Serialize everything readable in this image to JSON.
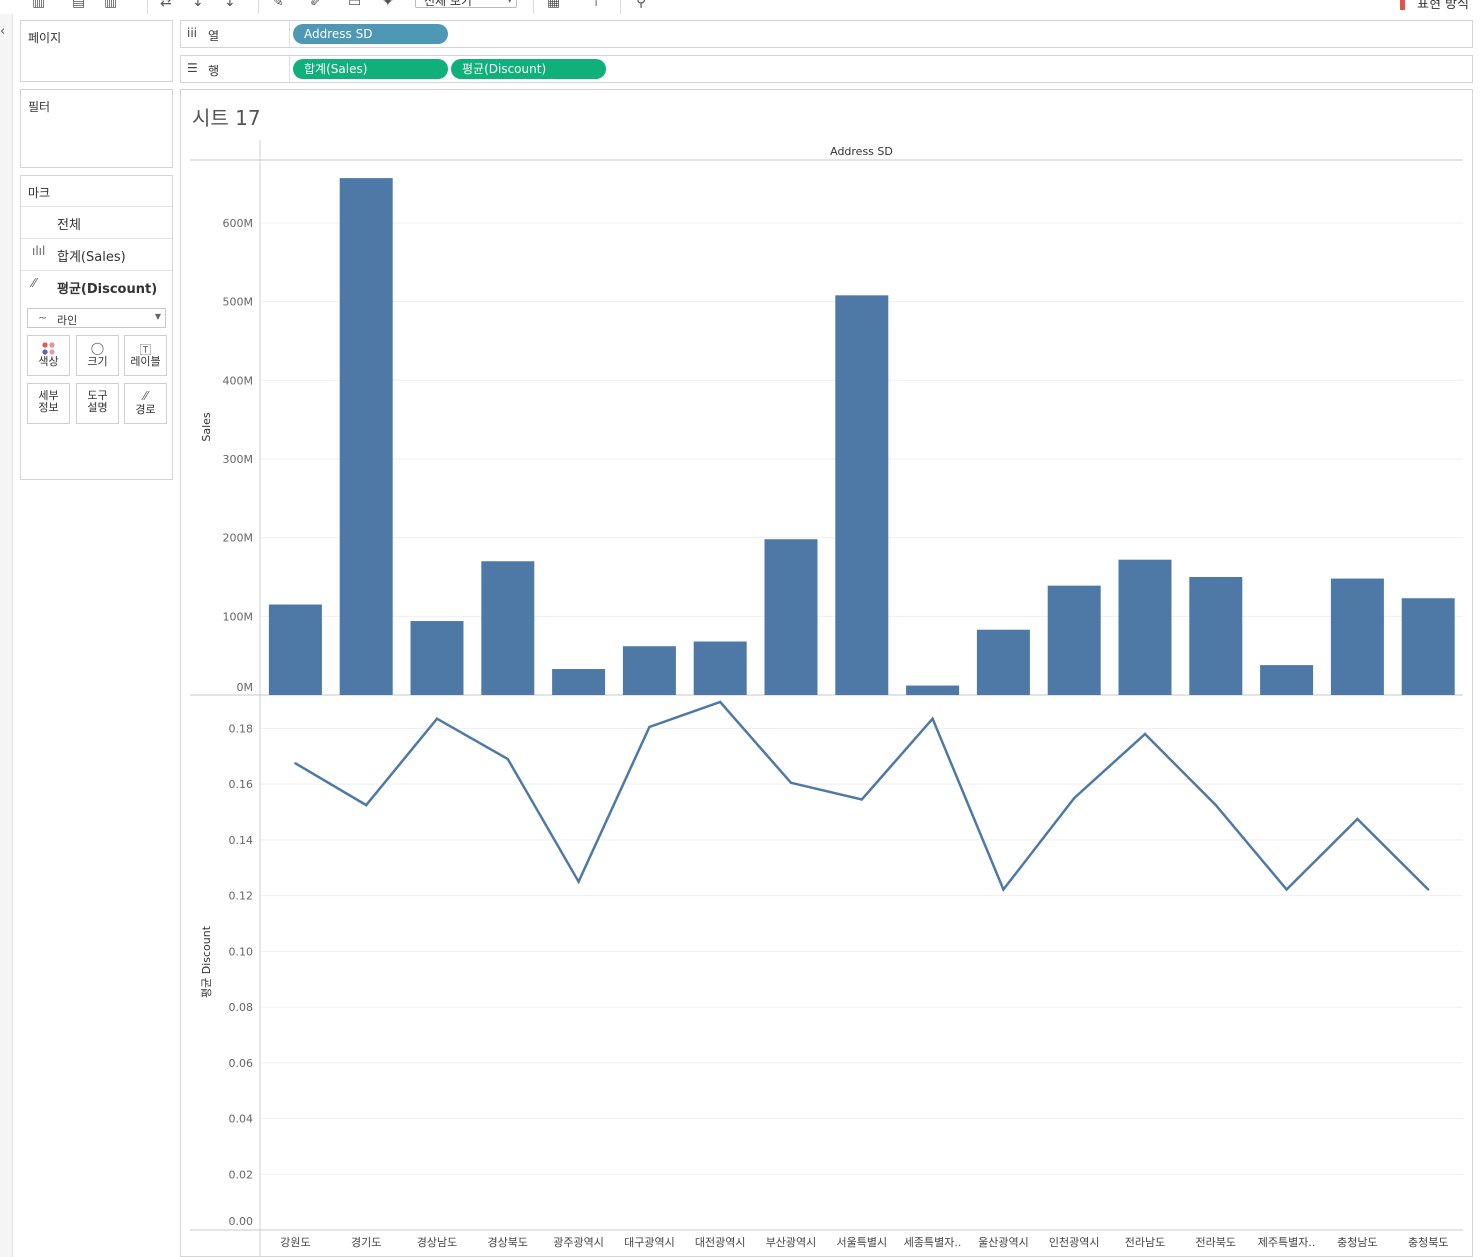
{
  "toolbar": {
    "fit_label": "전체 보기",
    "show_me_label": "표현 방식"
  },
  "side": {
    "pages_title": "페이지",
    "filters_title": "필터",
    "marks_title": "마크",
    "marks_rows": [
      {
        "label": "전체"
      },
      {
        "label": "합계(Sales)"
      },
      {
        "label": "평균(Discount)"
      }
    ],
    "mark_type": "라인",
    "mark_buttons": {
      "color": "색상",
      "size": "크기",
      "label": "레이블",
      "detail_1": "세부",
      "detail_2": "정보",
      "tooltip_1": "도구",
      "tooltip_2": "설명",
      "path": "경로"
    }
  },
  "shelves": {
    "columns_label": "열",
    "rows_label": "행",
    "columns_pills": [
      "Address SD"
    ],
    "rows_pills": [
      "합계(Sales)",
      "평균(Discount)"
    ]
  },
  "sheet_title": "시트 17",
  "chart_data": [
    {
      "type": "bar",
      "header": "Address SD",
      "ylabel": "Sales",
      "ylim": [
        0,
        680
      ],
      "yticks": [
        "0M",
        "100M",
        "200M",
        "300M",
        "400M",
        "500M",
        "600M"
      ],
      "ytick_values": [
        0,
        100,
        200,
        300,
        400,
        500,
        600
      ],
      "categories": [
        "강원도",
        "경기도",
        "경상남도",
        "경상북도",
        "광주광역시",
        "대구광역시",
        "대전광역시",
        "부산광역시",
        "서울특별시",
        "세종특별자..",
        "울산광역시",
        "인천광역시",
        "전라남도",
        "전라북도",
        "제주특별자..",
        "충청남도",
        "충청북도"
      ],
      "values": [
        115,
        657,
        94,
        170,
        33,
        62,
        68,
        198,
        508,
        12,
        83,
        139,
        172,
        150,
        38,
        148,
        123
      ],
      "unit": "M",
      "color": "#4e79a7",
      "grid": true
    },
    {
      "type": "line",
      "ylabel": "평균 Discount",
      "ylim": [
        0,
        0.192
      ],
      "yticks": [
        "0.00",
        "0.02",
        "0.04",
        "0.06",
        "0.08",
        "0.10",
        "0.12",
        "0.14",
        "0.16",
        "0.18"
      ],
      "ytick_values": [
        0,
        0.02,
        0.04,
        0.06,
        0.08,
        0.1,
        0.12,
        0.14,
        0.16,
        0.18
      ],
      "categories": [
        "강원도",
        "경기도",
        "경상남도",
        "경상북도",
        "광주광역시",
        "대구광역시",
        "대전광역시",
        "부산광역시",
        "서울특별시",
        "세종특별자..",
        "울산광역시",
        "인천광역시",
        "전라남도",
        "전라북도",
        "제주특별자..",
        "충청남도",
        "충청북도"
      ],
      "values": [
        0.1675,
        0.1525,
        0.1835,
        0.169,
        0.125,
        0.1805,
        0.1895,
        0.1605,
        0.1545,
        0.1835,
        0.1222,
        0.155,
        0.178,
        0.1525,
        0.1222,
        0.1475,
        0.1222
      ],
      "color": "#4e79a7",
      "grid": true
    }
  ]
}
